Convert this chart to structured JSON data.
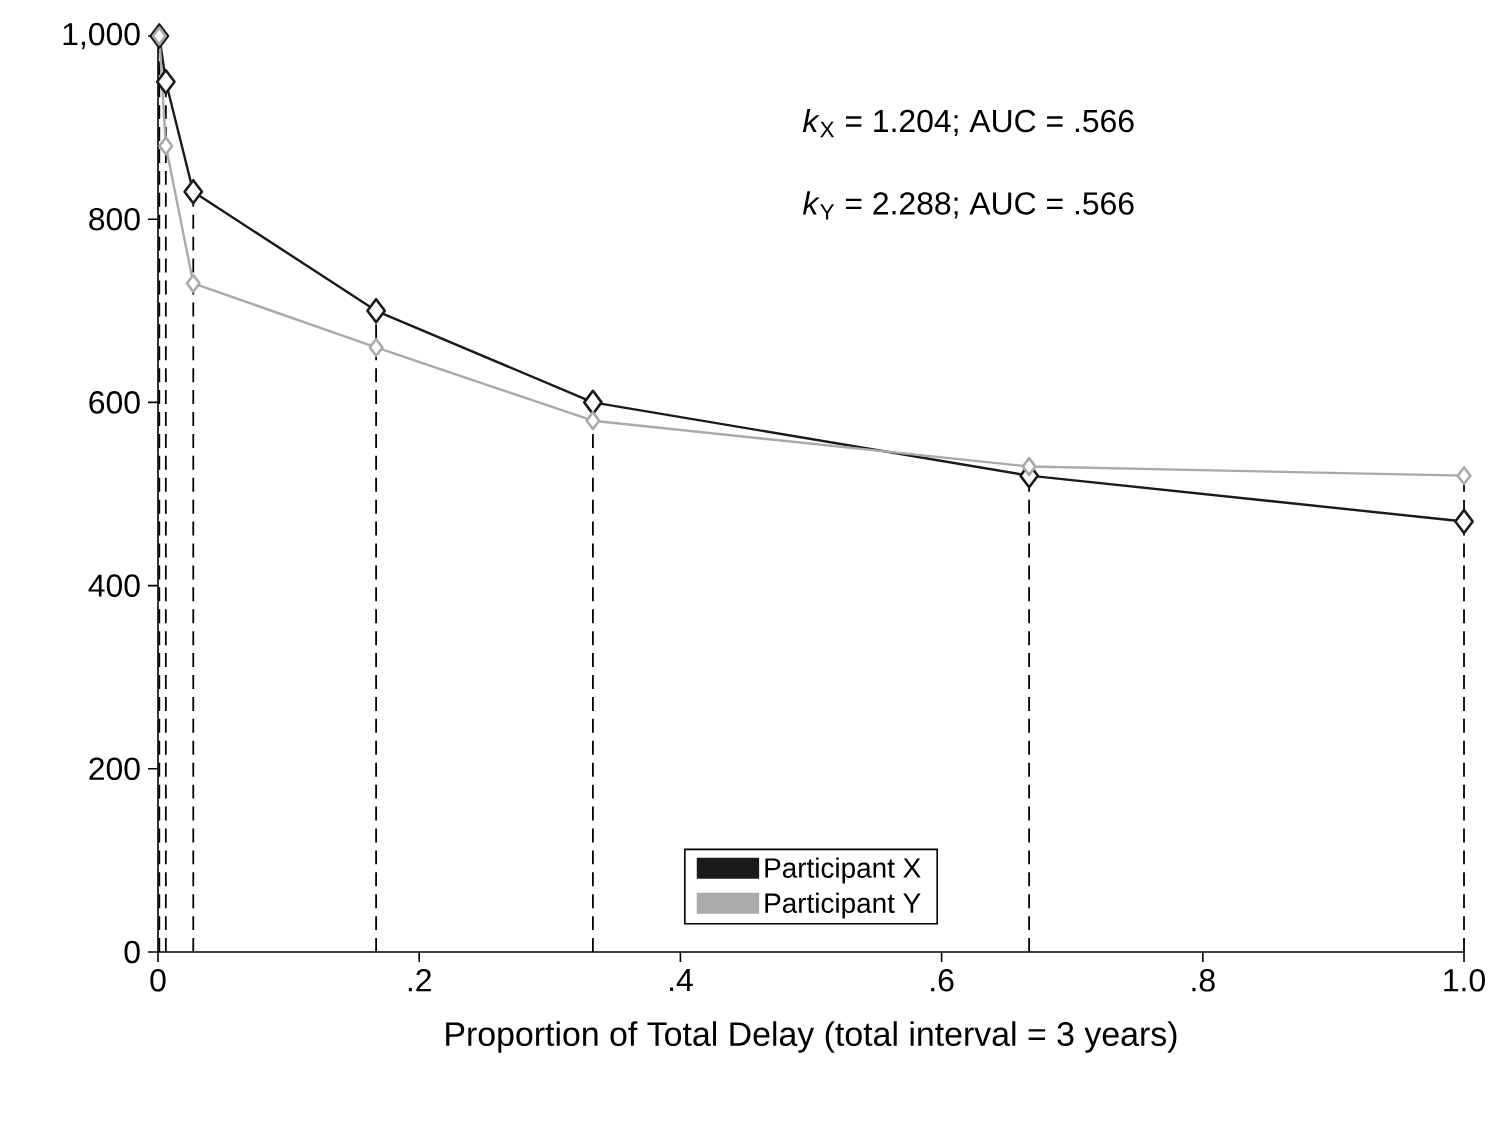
{
  "chart_data": {
    "type": "line",
    "xlabel": "Proportion of Total Delay (total interval = 3 years)",
    "x": [
      0.001,
      0.006,
      0.027,
      0.167,
      0.333,
      0.667,
      1.0
    ],
    "series": [
      {
        "name": "Participant X",
        "color": "#1a1a1a",
        "values": [
          1000,
          950,
          830,
          700,
          600,
          520,
          470
        ]
      },
      {
        "name": "Participant Y",
        "color": "#aaaaaa",
        "values": [
          1000,
          880,
          730,
          660,
          580,
          530,
          520
        ]
      }
    ],
    "xlim": [
      0,
      1
    ],
    "ylim": [
      0,
      1000
    ],
    "xticks": [
      {
        "value": 0,
        "label": "0"
      },
      {
        "value": 0.2,
        "label": ".2"
      },
      {
        "value": 0.4,
        "label": ".4"
      },
      {
        "value": 0.6,
        "label": ".6"
      },
      {
        "value": 0.8,
        "label": ".8"
      },
      {
        "value": 1.0,
        "label": "1.0"
      }
    ],
    "yticks": [
      0,
      200,
      400,
      600,
      800,
      {
        "value": 1000,
        "label": "1,000"
      }
    ],
    "ref_lines": [
      {
        "axis": "x",
        "value": 0.001,
        "line_style": "dashed"
      },
      {
        "axis": "x",
        "value": 0.006,
        "line_style": "dashed"
      },
      {
        "axis": "x",
        "value": 0.027,
        "line_style": "dashed"
      },
      {
        "axis": "x",
        "value": 0.167,
        "line_style": "dashed"
      },
      {
        "axis": "x",
        "value": 0.333,
        "line_style": "dashed"
      },
      {
        "axis": "x",
        "value": 0.667,
        "line_style": "dashed"
      },
      {
        "axis": "x",
        "value": 1.0,
        "line_style": "dashed"
      }
    ],
    "annotations": [
      "*k*$_{X}$ = 1.204; AUC = .566",
      "*k*$_{Y}$ = 2.288; AUC = .566"
    ],
    "legend": "bottom",
    "marker": "diamond",
    "line_style": "solid",
    "grid": false
  }
}
